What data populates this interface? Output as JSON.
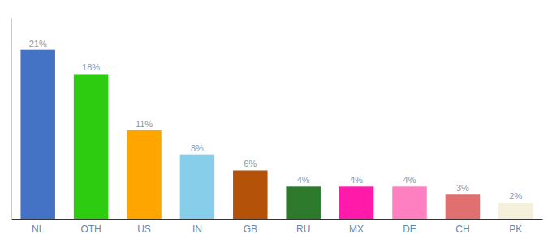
{
  "chart_data": {
    "type": "bar",
    "categories": [
      "NL",
      "OTH",
      "US",
      "IN",
      "GB",
      "RU",
      "MX",
      "DE",
      "CH",
      "PK"
    ],
    "values": [
      21,
      18,
      11,
      8,
      6,
      4,
      4,
      4,
      3,
      2
    ],
    "value_labels": [
      "21%",
      "18%",
      "11%",
      "8%",
      "6%",
      "4%",
      "4%",
      "4%",
      "3%",
      "2%"
    ],
    "colors": [
      "#4472c4",
      "#2ecc11",
      "#ffa500",
      "#87ceeb",
      "#b5520a",
      "#2d7a2d",
      "#ff1aaa",
      "#ff80c0",
      "#e07070",
      "#f5f0dc"
    ],
    "ylim": [
      0,
      25
    ],
    "data_labels": true,
    "tick_labels": "x",
    "grid": false
  }
}
